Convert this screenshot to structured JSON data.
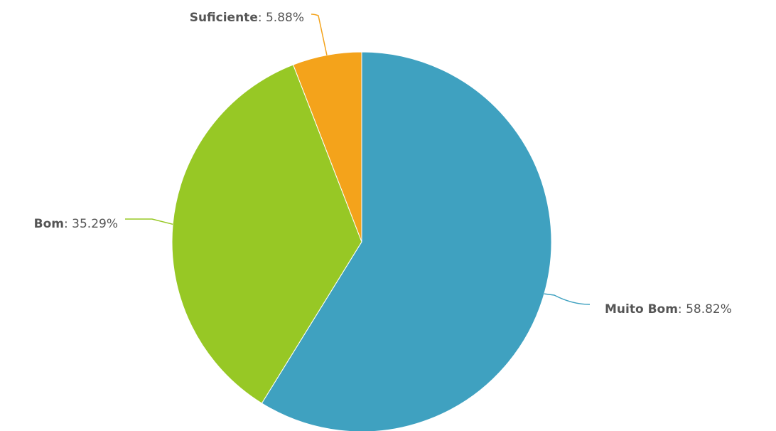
{
  "chart_data": {
    "type": "pie",
    "title": "",
    "slices": [
      {
        "name": "Muito Bom",
        "value": 58.82,
        "display": "58.82%",
        "color": "#3fa1c0"
      },
      {
        "name": "Bom",
        "value": 35.29,
        "display": "35.29%",
        "color": "#97c825"
      },
      {
        "name": "Suficiente",
        "value": 5.88,
        "display": "5.88%",
        "color": "#f4a31b"
      }
    ],
    "start_angle": "12 o'clock",
    "direction": "clockwise",
    "legend": "none",
    "label_separator": ": "
  }
}
